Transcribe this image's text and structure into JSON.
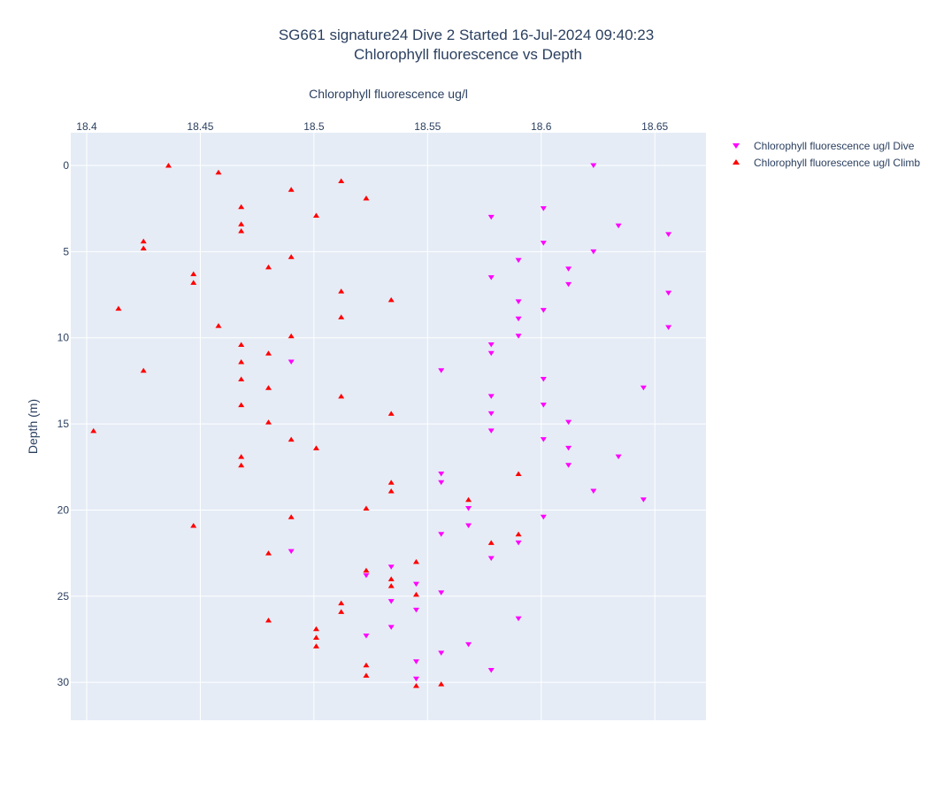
{
  "chart_data": {
    "type": "scatter",
    "title_line1": "SG661 signature24 Dive 2 Started 16-Jul-2024 09:40:23",
    "title_line2": "Chlorophyll fluorescence vs Depth",
    "xlabel": "Chlorophyll fluorescence ug/l",
    "ylabel": "Depth (m)",
    "x_axis_position": "top",
    "y_axis_reversed": true,
    "xlim": [
      18.393,
      18.6725
    ],
    "ylim": [
      32.2,
      -1.9
    ],
    "x_ticks": [
      18.4,
      18.45,
      18.5,
      18.55,
      18.6,
      18.65
    ],
    "x_tick_labels": [
      "18.4",
      "18.45",
      "18.5",
      "18.55",
      "18.6",
      "18.65"
    ],
    "y_ticks": [
      0,
      5,
      10,
      15,
      20,
      25,
      30
    ],
    "y_tick_labels": [
      "0",
      "5",
      "10",
      "15",
      "20",
      "25",
      "30"
    ],
    "grid": true,
    "legend_position": "top-right",
    "colors": {
      "plot_bg": "#e5ecf6",
      "grid": "#ffffff",
      "dive": "#ff00ff",
      "climb": "#ff0000"
    },
    "series": [
      {
        "name": "Chlorophyll fluorescence ug/l Dive",
        "marker": "triangle-down",
        "color": "#ff00ff",
        "points": [
          [
            18.623,
            0.0
          ],
          [
            18.601,
            2.5
          ],
          [
            18.578,
            3.0
          ],
          [
            18.634,
            3.5
          ],
          [
            18.656,
            4.0
          ],
          [
            18.601,
            4.5
          ],
          [
            18.623,
            5.0
          ],
          [
            18.59,
            5.5
          ],
          [
            18.612,
            6.0
          ],
          [
            18.578,
            6.5
          ],
          [
            18.612,
            6.9
          ],
          [
            18.656,
            7.4
          ],
          [
            18.59,
            7.9
          ],
          [
            18.601,
            8.4
          ],
          [
            18.59,
            8.9
          ],
          [
            18.656,
            9.4
          ],
          [
            18.59,
            9.9
          ],
          [
            18.578,
            10.4
          ],
          [
            18.578,
            10.9
          ],
          [
            18.49,
            11.4
          ],
          [
            18.556,
            11.9
          ],
          [
            18.601,
            12.4
          ],
          [
            18.645,
            12.9
          ],
          [
            18.578,
            13.4
          ],
          [
            18.601,
            13.9
          ],
          [
            18.578,
            14.4
          ],
          [
            18.612,
            14.9
          ],
          [
            18.578,
            15.4
          ],
          [
            18.601,
            15.9
          ],
          [
            18.612,
            16.4
          ],
          [
            18.634,
            16.9
          ],
          [
            18.612,
            17.4
          ],
          [
            18.556,
            17.9
          ],
          [
            18.556,
            18.4
          ],
          [
            18.623,
            18.9
          ],
          [
            18.645,
            19.4
          ],
          [
            18.568,
            19.9
          ],
          [
            18.601,
            20.4
          ],
          [
            18.568,
            20.9
          ],
          [
            18.556,
            21.4
          ],
          [
            18.59,
            21.9
          ],
          [
            18.49,
            22.4
          ],
          [
            18.578,
            22.8
          ],
          [
            18.534,
            23.3
          ],
          [
            18.523,
            23.8
          ],
          [
            18.545,
            24.3
          ],
          [
            18.556,
            24.8
          ],
          [
            18.534,
            25.3
          ],
          [
            18.545,
            25.8
          ],
          [
            18.59,
            26.3
          ],
          [
            18.534,
            26.8
          ],
          [
            18.523,
            27.3
          ],
          [
            18.568,
            27.8
          ],
          [
            18.556,
            28.3
          ],
          [
            18.545,
            28.8
          ],
          [
            18.578,
            29.3
          ],
          [
            18.545,
            29.8
          ]
        ]
      },
      {
        "name": "Chlorophyll fluorescence ug/l Climb",
        "marker": "triangle-up",
        "color": "#ff0000",
        "points": [
          [
            18.436,
            0.0
          ],
          [
            18.458,
            0.4
          ],
          [
            18.512,
            0.9
          ],
          [
            18.49,
            1.4
          ],
          [
            18.523,
            1.9
          ],
          [
            18.468,
            2.4
          ],
          [
            18.501,
            2.9
          ],
          [
            18.468,
            3.4
          ],
          [
            18.468,
            3.8
          ],
          [
            18.425,
            4.4
          ],
          [
            18.425,
            4.8
          ],
          [
            18.49,
            5.3
          ],
          [
            18.48,
            5.9
          ],
          [
            18.447,
            6.3
          ],
          [
            18.447,
            6.8
          ],
          [
            18.512,
            7.3
          ],
          [
            18.534,
            7.8
          ],
          [
            18.414,
            8.3
          ],
          [
            18.512,
            8.8
          ],
          [
            18.458,
            9.3
          ],
          [
            18.49,
            9.9
          ],
          [
            18.468,
            10.4
          ],
          [
            18.48,
            10.9
          ],
          [
            18.468,
            11.4
          ],
          [
            18.425,
            11.9
          ],
          [
            18.468,
            12.4
          ],
          [
            18.48,
            12.9
          ],
          [
            18.512,
            13.4
          ],
          [
            18.468,
            13.9
          ],
          [
            18.534,
            14.4
          ],
          [
            18.48,
            14.9
          ],
          [
            18.403,
            15.4
          ],
          [
            18.49,
            15.9
          ],
          [
            18.501,
            16.4
          ],
          [
            18.468,
            16.9
          ],
          [
            18.468,
            17.4
          ],
          [
            18.59,
            17.9
          ],
          [
            18.534,
            18.4
          ],
          [
            18.534,
            18.9
          ],
          [
            18.568,
            19.4
          ],
          [
            18.523,
            19.9
          ],
          [
            18.49,
            20.4
          ],
          [
            18.447,
            20.9
          ],
          [
            18.59,
            21.4
          ],
          [
            18.578,
            21.9
          ],
          [
            18.48,
            22.5
          ],
          [
            18.545,
            23.0
          ],
          [
            18.523,
            23.5
          ],
          [
            18.534,
            24.0
          ],
          [
            18.534,
            24.4
          ],
          [
            18.545,
            24.9
          ],
          [
            18.512,
            25.4
          ],
          [
            18.512,
            25.9
          ],
          [
            18.48,
            26.4
          ],
          [
            18.501,
            26.9
          ],
          [
            18.501,
            27.4
          ],
          [
            18.501,
            27.9
          ],
          [
            18.523,
            29.0
          ],
          [
            18.523,
            29.6
          ],
          [
            18.556,
            30.1
          ],
          [
            18.545,
            30.2
          ]
        ]
      }
    ]
  }
}
